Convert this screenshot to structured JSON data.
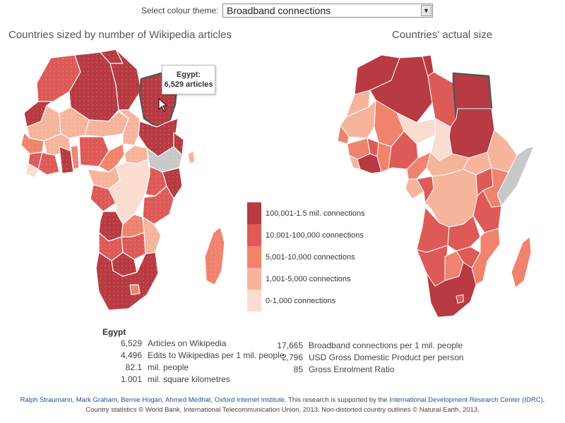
{
  "theme": {
    "label": "Select colour theme:",
    "selected": "Broadband connections"
  },
  "left_map": {
    "title": "Countries sized by number of Wikipedia articles"
  },
  "right_map": {
    "title": "Countries' actual size"
  },
  "tooltip": {
    "country": "Egypt:",
    "value": "6,529 articles"
  },
  "colors": {
    "c1": "#b83a42",
    "c2": "#dd5a57",
    "c3": "#ef836d",
    "c4": "#f6b49c",
    "c5": "#fbdcd0",
    "nodata": "#c8c8c8",
    "highlight_border": "#555555"
  },
  "legend": [
    {
      "label": "100,001-1.5 mil. connections",
      "color": "#b83a42"
    },
    {
      "label": "10,001-100,000 connections",
      "color": "#dd5a57"
    },
    {
      "label": "5,001-10,000 connections",
      "color": "#ef836d"
    },
    {
      "label": "1,001-5,000 connections",
      "color": "#f6b49c"
    },
    {
      "label": "0-1,000 connections",
      "color": "#fbdcd0"
    }
  ],
  "selected_country": {
    "name": "Egypt",
    "left_stats": [
      {
        "value": "6,529",
        "label": "Articles on Wikipedia"
      },
      {
        "value": "4,496",
        "label": "Edits to Wikipedias per 1 mil. people"
      },
      {
        "value": "82.1",
        "label": "mil. people"
      },
      {
        "value": "1.001",
        "label": "mil. square kilometres"
      }
    ],
    "right_stats": [
      {
        "value": "17,665",
        "label": "Broadband connections per 1 mil. people"
      },
      {
        "value": "2,796",
        "label": "USD Gross Domestic Product per person"
      },
      {
        "value": "85",
        "label": "Gross Enrolment Ratio"
      }
    ]
  },
  "credits": {
    "authors": [
      "Ralph Straumann",
      "Mark Graham",
      "Bernie Hogan",
      "Ahmed Medhat",
      "Oxford Internet Institute"
    ],
    "support_text": ". This research is supported by the ",
    "org": "International Development Research Center (IDRC)",
    "line2": "Country statistics © World Bank, International Telecommunication Union, 2013. Non-distorted country outlines © Natural Earth, 2013."
  }
}
